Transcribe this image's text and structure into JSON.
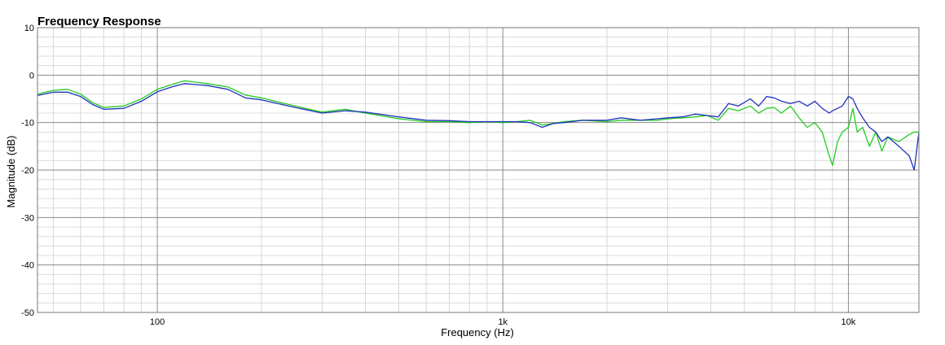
{
  "chart_data": {
    "type": "line",
    "title": "Frequency Response",
    "xlabel": "Frequency (Hz)",
    "ylabel": "Magnitude (dB)",
    "x_scale": "log",
    "xlim": [
      45,
      16000
    ],
    "ylim": [
      -50,
      10
    ],
    "x_ticks": [
      {
        "value": 100,
        "label": "100"
      },
      {
        "value": 1000,
        "label": "1k"
      },
      {
        "value": 10000,
        "label": "10k"
      }
    ],
    "y_ticks": [
      {
        "value": 10,
        "label": "10"
      },
      {
        "value": 0,
        "label": "0"
      },
      {
        "value": -10,
        "label": "-10"
      },
      {
        "value": -20,
        "label": "-20"
      },
      {
        "value": -30,
        "label": "-30"
      },
      {
        "value": -40,
        "label": "-40"
      },
      {
        "value": -50,
        "label": "-50"
      }
    ],
    "grid": true,
    "series": [
      {
        "color": "#22cc22",
        "x": [
          45,
          50,
          55,
          60,
          65,
          70,
          80,
          90,
          100,
          110,
          120,
          130,
          140,
          160,
          180,
          200,
          250,
          300,
          350,
          400,
          500,
          600,
          700,
          800,
          900,
          1000,
          1100,
          1200,
          1300,
          1400,
          1500,
          1700,
          2000,
          2200,
          2500,
          2800,
          3000,
          3300,
          3600,
          3900,
          4200,
          4500,
          4800,
          5200,
          5500,
          5800,
          6100,
          6400,
          6800,
          7200,
          7600,
          8000,
          8400,
          8800,
          9000,
          9300,
          9600,
          10000,
          10300,
          10600,
          11000,
          11500,
          12000,
          12500,
          13000,
          14000,
          15000,
          15500,
          16000
        ],
        "y": [
          -4,
          -3.2,
          -3,
          -4,
          -5.8,
          -6.8,
          -6.5,
          -5,
          -3,
          -2,
          -1.2,
          -1.5,
          -1.8,
          -2.5,
          -4.2,
          -4.8,
          -6.5,
          -7.8,
          -7.2,
          -8,
          -9.2,
          -9.8,
          -9.8,
          -10,
          -9.8,
          -10,
          -9.8,
          -9.5,
          -10.5,
          -10.2,
          -9.8,
          -9.5,
          -9.8,
          -9.5,
          -9.5,
          -9.5,
          -9.2,
          -9,
          -8.8,
          -8.5,
          -9.5,
          -7,
          -7.5,
          -6.5,
          -8,
          -7,
          -6.8,
          -8,
          -6.5,
          -9,
          -11,
          -10,
          -12,
          -17,
          -19,
          -14,
          -12,
          -11,
          -7,
          -12,
          -11,
          -15,
          -12,
          -16,
          -13,
          -14,
          -12.5,
          -12,
          -12
        ]
      },
      {
        "color": "#2233bb",
        "x": [
          45,
          50,
          55,
          60,
          65,
          70,
          80,
          90,
          100,
          110,
          120,
          130,
          140,
          160,
          180,
          200,
          250,
          300,
          350,
          400,
          500,
          600,
          700,
          800,
          900,
          1000,
          1100,
          1200,
          1300,
          1400,
          1500,
          1700,
          2000,
          2200,
          2500,
          2800,
          3000,
          3300,
          3600,
          3900,
          4200,
          4500,
          4800,
          5200,
          5500,
          5800,
          6100,
          6400,
          6800,
          7200,
          7600,
          8000,
          8400,
          8800,
          9000,
          9300,
          9600,
          10000,
          10300,
          10600,
          11000,
          11500,
          12000,
          12500,
          13000,
          14000,
          15000,
          15500,
          16000
        ],
        "y": [
          -4.3,
          -3.6,
          -3.6,
          -4.5,
          -6.2,
          -7.2,
          -7,
          -5.5,
          -3.5,
          -2.5,
          -1.8,
          -2,
          -2.2,
          -3,
          -4.8,
          -5.2,
          -6.8,
          -8,
          -7.5,
          -7.8,
          -8.8,
          -9.5,
          -9.6,
          -9.8,
          -9.8,
          -9.8,
          -9.8,
          -10,
          -11,
          -10.2,
          -10,
          -9.5,
          -9.5,
          -9,
          -9.5,
          -9.2,
          -9,
          -8.8,
          -8.2,
          -8.5,
          -8.8,
          -6,
          -6.5,
          -5,
          -6.5,
          -4.5,
          -4.8,
          -5.5,
          -6,
          -5.5,
          -6.5,
          -5.5,
          -7,
          -8,
          -7.5,
          -7,
          -6.5,
          -4.5,
          -5,
          -7,
          -9,
          -11,
          -12,
          -14,
          -13,
          -15,
          -17,
          -20,
          -12
        ]
      }
    ]
  }
}
